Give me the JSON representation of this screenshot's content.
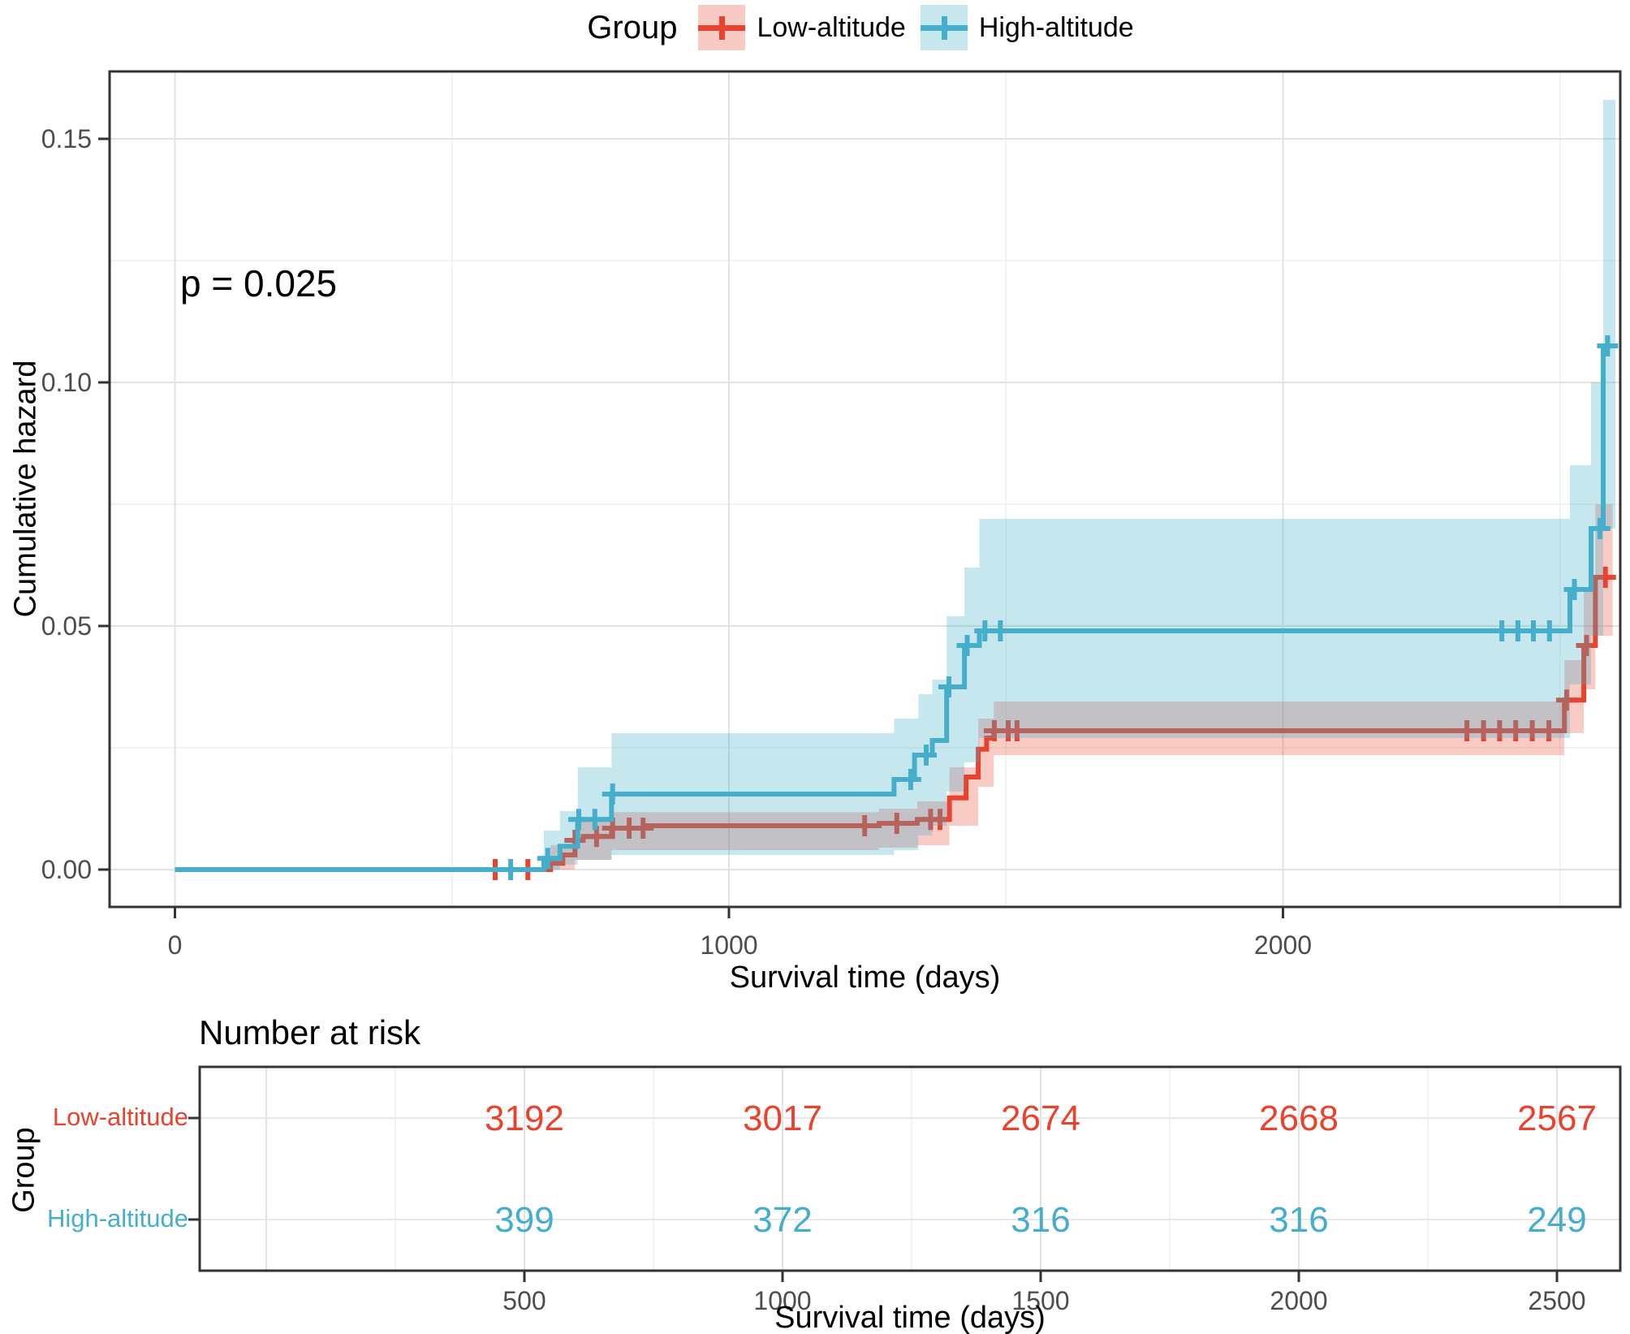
{
  "legend": {
    "title": "Group",
    "items": [
      {
        "label": "Low-altitude",
        "color": "#E7432E",
        "key_fill": "#F8CAC4"
      },
      {
        "label": "High-altitude",
        "color": "#45AECB",
        "key_fill": "#C7E7EF"
      }
    ]
  },
  "pvalue_text": "p = 0.025",
  "axes": {
    "y_title": "Cumulative hazard",
    "x_title": "Survival time (days)",
    "y_tick_labels": [
      "0.00",
      "0.05",
      "0.10",
      "0.15"
    ],
    "x_tick_labels": [
      "0",
      "1000",
      "2000"
    ]
  },
  "risk_table": {
    "title": "Number at risk",
    "group_axis_title": "Group",
    "x_title": "Survival time (days)",
    "x_tick_labels": [
      "500",
      "1000",
      "1500",
      "2000",
      "2500"
    ],
    "rows": [
      {
        "label": "Low-altitude",
        "color": "#E7432E",
        "counts": [
          "3192",
          "3017",
          "2674",
          "2668",
          "2567"
        ]
      },
      {
        "label": "High-altitude",
        "color": "#45AECB",
        "counts": [
          "399",
          "372",
          "316",
          "316",
          "249"
        ]
      }
    ]
  },
  "chart_data": {
    "type": "line",
    "subtype": "step-cumulative-hazard",
    "title": "",
    "xlabel": "Survival time (days)",
    "ylabel": "Cumulative hazard",
    "xlim": [
      -118,
      2609
    ],
    "ylim": [
      -0.0077,
      0.1638
    ],
    "x_major_ticks": [
      0,
      1000,
      2000
    ],
    "x_minor_gridlines": [
      500,
      1500,
      2500
    ],
    "y_major_ticks": [
      0,
      0.05,
      0.1,
      0.15
    ],
    "y_minor_gridlines": [
      0.025,
      0.075,
      0.125
    ],
    "grid": true,
    "legend_position": "top",
    "pvalue": 0.025,
    "risk_times": [
      500,
      1000,
      1500,
      2000,
      2500
    ],
    "series": [
      {
        "name": "Low-altitude",
        "color": "#E7432E",
        "band_opacity": 0.28,
        "steps": [
          [
            0,
            0
          ],
          [
            678,
            0.0013
          ],
          [
            700,
            0.003
          ],
          [
            722,
            0.006
          ],
          [
            737,
            0.0068
          ],
          [
            788,
            0.0085
          ],
          [
            848,
            0.009
          ],
          [
            1271,
            0.0095
          ],
          [
            1340,
            0.0103
          ],
          [
            1398,
            0.0147
          ],
          [
            1428,
            0.019
          ],
          [
            1450,
            0.0247
          ],
          [
            1465,
            0.027
          ],
          [
            1478,
            0.0285
          ],
          [
            2508,
            0.0348
          ],
          [
            2543,
            0.046
          ],
          [
            2564,
            0.06
          ]
        ],
        "end": 2595,
        "censors": [
          [
            578,
            0
          ],
          [
            637,
            0
          ],
          [
            722,
            0.006
          ],
          [
            761,
            0.0068
          ],
          [
            790,
            0.0085
          ],
          [
            820,
            0.0085
          ],
          [
            845,
            0.0085
          ],
          [
            1245,
            0.009
          ],
          [
            1303,
            0.0095
          ],
          [
            1364,
            0.0103
          ],
          [
            1381,
            0.0103
          ],
          [
            1479,
            0.0285
          ],
          [
            1504,
            0.0285
          ],
          [
            1520,
            0.0285
          ],
          [
            2332,
            0.0285
          ],
          [
            2362,
            0.0285
          ],
          [
            2391,
            0.0285
          ],
          [
            2420,
            0.0285
          ],
          [
            2450,
            0.0285
          ],
          [
            2480,
            0.0285
          ],
          [
            2512,
            0.0348
          ],
          [
            2548,
            0.046
          ],
          [
            2582,
            0.06
          ]
        ],
        "band": [
          [
            0,
            0,
            0
          ],
          [
            678,
            0,
            0.005
          ],
          [
            722,
            0.002,
            0.01
          ],
          [
            788,
            0.004,
            0.0118
          ],
          [
            1271,
            0.0045,
            0.0125
          ],
          [
            1340,
            0.005,
            0.014
          ],
          [
            1398,
            0.009,
            0.021
          ],
          [
            1450,
            0.017,
            0.031
          ],
          [
            1478,
            0.0235,
            0.0345
          ],
          [
            2508,
            0.028,
            0.043
          ],
          [
            2543,
            0.037,
            0.057
          ],
          [
            2564,
            0.048,
            0.075
          ]
        ],
        "band_end": 2595
      },
      {
        "name": "High-altitude",
        "color": "#45AECB",
        "band_opacity": 0.3,
        "steps": [
          [
            0,
            0
          ],
          [
            666,
            0.0023
          ],
          [
            695,
            0.0048
          ],
          [
            727,
            0.0103
          ],
          [
            788,
            0.0155
          ],
          [
            1298,
            0.0185
          ],
          [
            1335,
            0.0235
          ],
          [
            1367,
            0.0265
          ],
          [
            1393,
            0.0375
          ],
          [
            1425,
            0.046
          ],
          [
            1452,
            0.049
          ],
          [
            2518,
            0.0575
          ],
          [
            2556,
            0.07
          ],
          [
            2578,
            0.1075
          ]
        ],
        "end": 2600,
        "censors": [
          [
            606,
            0
          ],
          [
            673,
            0.0023
          ],
          [
            729,
            0.0103
          ],
          [
            758,
            0.0103
          ],
          [
            790,
            0.0155
          ],
          [
            1328,
            0.0185
          ],
          [
            1356,
            0.0235
          ],
          [
            1397,
            0.0375
          ],
          [
            1430,
            0.046
          ],
          [
            1462,
            0.049
          ],
          [
            1490,
            0.049
          ],
          [
            2395,
            0.049
          ],
          [
            2424,
            0.049
          ],
          [
            2452,
            0.049
          ],
          [
            2481,
            0.049
          ],
          [
            2526,
            0.0575
          ],
          [
            2572,
            0.07
          ],
          [
            2586,
            0.1075
          ]
        ],
        "band": [
          [
            0,
            0,
            0
          ],
          [
            666,
            0,
            0.008
          ],
          [
            695,
            0.001,
            0.012
          ],
          [
            727,
            0.002,
            0.021
          ],
          [
            788,
            0.003,
            0.028
          ],
          [
            1298,
            0.004,
            0.031
          ],
          [
            1342,
            0.007,
            0.036
          ],
          [
            1367,
            0.009,
            0.039
          ],
          [
            1393,
            0.016,
            0.052
          ],
          [
            1425,
            0.022,
            0.062
          ],
          [
            1452,
            0.027,
            0.072
          ],
          [
            2518,
            0.038,
            0.083
          ],
          [
            2556,
            0.048,
            0.1
          ],
          [
            2578,
            0.07,
            0.158
          ]
        ],
        "band_end": 2600
      }
    ],
    "number_at_risk": {
      "times": [
        500,
        1000,
        1500,
        2000,
        2500
      ],
      "Low-altitude": [
        3192,
        3017,
        2674,
        2668,
        2567
      ],
      "High-altitude": [
        399,
        372,
        316,
        316,
        249
      ]
    }
  }
}
